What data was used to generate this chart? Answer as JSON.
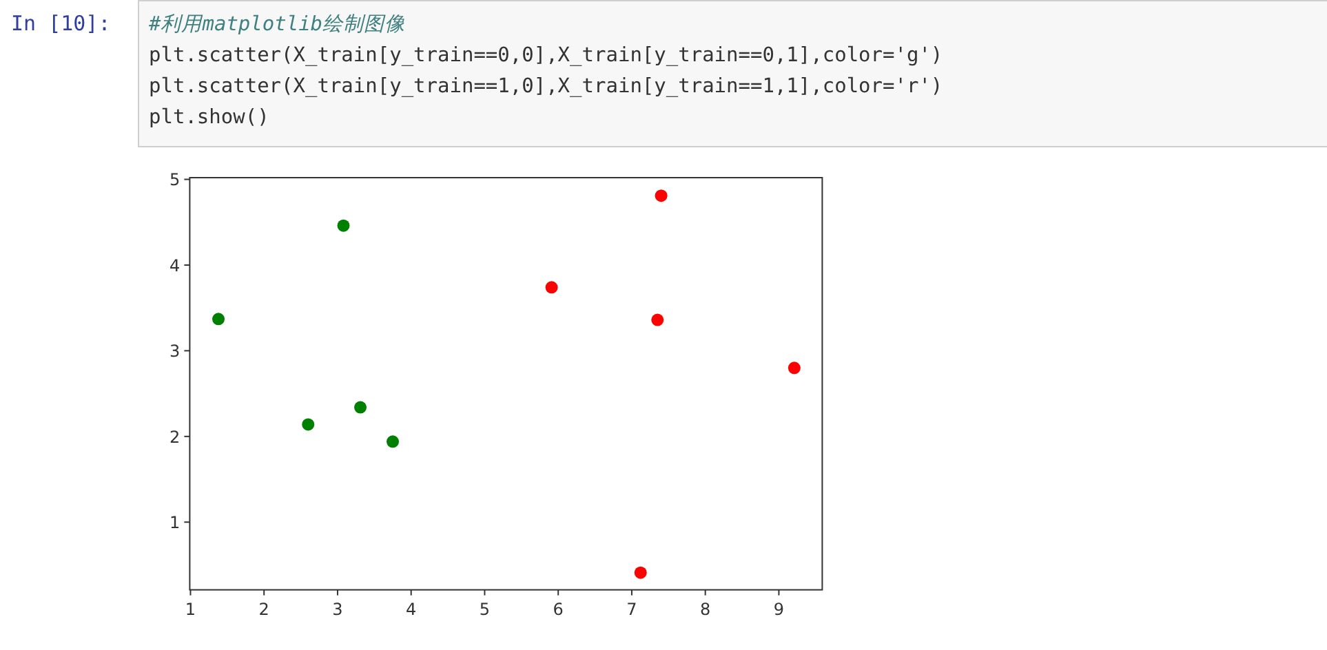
{
  "chart_data": {
    "type": "scatter",
    "marker": "circle",
    "grid": false,
    "annotations": [
      "In  [10]:",
      "#利用matplotlib绘制图像",
      "plt.scatter(X_train[y_train==0,0],X_train[y_train==0,1],color='g')",
      "plt.scatter(X_train[y_train==1,0],X_train[y_train==1,1],color='r')",
      "plt.show()"
    ],
    "xlim": [
      0.99,
      9.59
    ],
    "ylim": [
      0.21,
      5.02
    ],
    "xticks": [
      1,
      2,
      3,
      4,
      5,
      6,
      7,
      8,
      9
    ],
    "yticks": [
      1,
      2,
      3,
      4,
      5
    ],
    "series": [
      {
        "color": "#008000",
        "x": [
          1.38,
          3.08,
          2.6,
          3.31,
          3.75
        ],
        "values": [
          3.37,
          4.46,
          2.14,
          2.34,
          1.94
        ]
      },
      {
        "color": "#ff0000",
        "x": [
          7.4,
          5.91,
          7.35,
          9.21,
          7.12
        ],
        "values": [
          4.81,
          3.74,
          3.36,
          2.8,
          0.41
        ]
      }
    ]
  }
}
